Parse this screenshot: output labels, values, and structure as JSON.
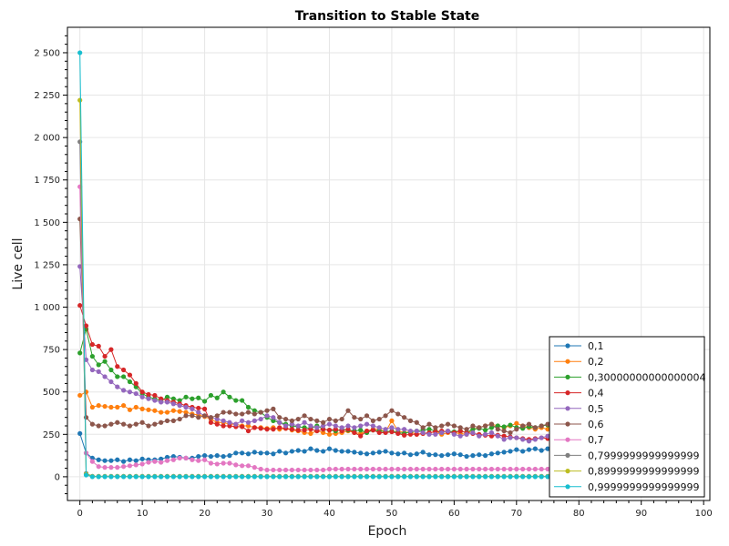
{
  "chart_data": {
    "type": "line",
    "title": "Transition to Stable State",
    "xlabel": "Epoch",
    "ylabel": "Live cell",
    "xlim": [
      -2,
      101
    ],
    "ylim": [
      -140,
      2650
    ],
    "xticks": [
      0,
      10,
      20,
      30,
      40,
      50,
      60,
      70,
      80,
      90,
      100
    ],
    "xtick_labels": [
      "0",
      "10",
      "20",
      "30",
      "40",
      "50",
      "60",
      "70",
      "80",
      "90",
      "100"
    ],
    "yticks": [
      0,
      250,
      500,
      750,
      1000,
      1250,
      1500,
      1750,
      2000,
      2250,
      2500
    ],
    "ytick_labels": [
      "0",
      "250",
      "500",
      "750",
      "1 000",
      "1 250",
      "1 500",
      "1 750",
      "2 000",
      "2 250",
      "2 500"
    ],
    "grid": true,
    "legend_position": "bottom-right",
    "series": [
      {
        "name": "0,1",
        "color": "#1f77b4",
        "values": [
          255,
          140,
          110,
          100,
          95,
          95,
          100,
          90,
          100,
          95,
          105,
          100,
          100,
          105,
          115,
          120,
          115,
          110,
          110,
          120,
          125,
          120,
          125,
          120,
          125,
          140,
          140,
          135,
          145,
          140,
          140,
          135,
          150,
          140,
          150,
          155,
          150,
          165,
          155,
          150,
          165,
          155,
          150,
          150,
          145,
          140,
          135,
          140,
          145,
          150,
          140,
          135,
          140,
          130,
          135,
          145,
          130,
          130,
          125,
          130,
          135,
          130,
          120,
          125,
          130,
          125,
          135,
          140,
          145,
          150,
          160,
          150,
          160,
          165,
          155,
          165
        ]
      },
      {
        "name": "0,2",
        "color": "#ff7f0e",
        "values": [
          480,
          500,
          410,
          420,
          415,
          410,
          410,
          420,
          395,
          410,
          400,
          395,
          390,
          380,
          380,
          390,
          385,
          380,
          370,
          365,
          355,
          340,
          320,
          320,
          310,
          310,
          300,
          300,
          290,
          290,
          285,
          290,
          280,
          285,
          275,
          270,
          260,
          255,
          270,
          260,
          250,
          255,
          260,
          270,
          260,
          255,
          270,
          280,
          280,
          265,
          330,
          270,
          260,
          265,
          250,
          255,
          255,
          270,
          250,
          260,
          260,
          255,
          250,
          280,
          290,
          300,
          310,
          300,
          290,
          300,
          315,
          300,
          290,
          280,
          290,
          280
        ]
      },
      {
        "name": "0,30000000000000004",
        "color": "#2ca02c",
        "values": [
          730,
          870,
          710,
          660,
          680,
          630,
          590,
          590,
          560,
          530,
          490,
          470,
          460,
          450,
          470,
          460,
          450,
          470,
          460,
          465,
          445,
          480,
          465,
          500,
          470,
          450,
          450,
          410,
          390,
          380,
          350,
          330,
          320,
          310,
          300,
          295,
          290,
          285,
          300,
          280,
          275,
          270,
          280,
          275,
          270,
          275,
          260,
          275,
          270,
          265,
          270,
          260,
          255,
          265,
          270,
          275,
          280,
          270,
          260,
          270,
          265,
          270,
          260,
          280,
          285,
          275,
          290,
          300,
          295,
          305,
          290,
          285,
          295,
          290,
          300,
          305
        ]
      },
      {
        "name": "0,4",
        "color": "#d62728",
        "values": [
          1010,
          890,
          780,
          770,
          710,
          750,
          650,
          630,
          600,
          550,
          500,
          485,
          480,
          460,
          450,
          440,
          430,
          420,
          410,
          405,
          400,
          320,
          310,
          300,
          300,
          295,
          295,
          270,
          290,
          285,
          280,
          280,
          290,
          285,
          280,
          275,
          275,
          280,
          270,
          280,
          275,
          280,
          270,
          280,
          260,
          240,
          270,
          275,
          260,
          260,
          265,
          255,
          245,
          250,
          250,
          255,
          260,
          265,
          270,
          265,
          260,
          270,
          260,
          255,
          250,
          245,
          240,
          245,
          240,
          235,
          230,
          225,
          220,
          225,
          230,
          225
        ]
      },
      {
        "name": "0,5",
        "color": "#9467bd",
        "values": [
          1240,
          690,
          630,
          620,
          590,
          560,
          530,
          510,
          500,
          490,
          470,
          460,
          450,
          440,
          440,
          430,
          420,
          410,
          400,
          380,
          360,
          350,
          340,
          330,
          320,
          310,
          330,
          320,
          330,
          340,
          360,
          350,
          320,
          300,
          310,
          300,
          320,
          300,
          290,
          300,
          310,
          300,
          290,
          300,
          290,
          300,
          310,
          300,
          290,
          280,
          290,
          280,
          280,
          270,
          270,
          260,
          250,
          250,
          260,
          270,
          250,
          240,
          250,
          260,
          240,
          250,
          260,
          240,
          220,
          230,
          230,
          220,
          210,
          220,
          230,
          240
        ]
      },
      {
        "name": "0,6",
        "color": "#8c564b",
        "values": [
          1520,
          350,
          310,
          300,
          300,
          310,
          320,
          310,
          300,
          310,
          320,
          300,
          310,
          320,
          330,
          330,
          340,
          360,
          360,
          350,
          360,
          350,
          360,
          380,
          380,
          370,
          370,
          380,
          370,
          380,
          390,
          400,
          350,
          340,
          330,
          340,
          360,
          340,
          330,
          320,
          340,
          330,
          340,
          390,
          350,
          340,
          360,
          330,
          340,
          360,
          390,
          370,
          350,
          330,
          320,
          290,
          310,
          290,
          300,
          310,
          300,
          290,
          280,
          300,
          290,
          300,
          310,
          280,
          270,
          260,
          280,
          300,
          310,
          290,
          300,
          310
        ]
      },
      {
        "name": "0,7",
        "color": "#e377c2",
        "values": [
          1710,
          140,
          90,
          60,
          55,
          55,
          55,
          60,
          65,
          70,
          75,
          85,
          90,
          85,
          95,
          100,
          110,
          110,
          100,
          95,
          100,
          80,
          75,
          80,
          80,
          70,
          65,
          65,
          55,
          45,
          40,
          40,
          40,
          40,
          40,
          40,
          40,
          40,
          40,
          40,
          45,
          45,
          45,
          45,
          45,
          45,
          45,
          45,
          45,
          45,
          45,
          45,
          45,
          45,
          45,
          45,
          45,
          45,
          45,
          45,
          45,
          45,
          45,
          45,
          45,
          45,
          45,
          45,
          45,
          45,
          45,
          45,
          45,
          45,
          45,
          45
        ]
      },
      {
        "name": "0,7999999999999999",
        "color": "#7f7f7f",
        "values": [
          1975,
          20,
          3,
          3,
          3,
          3,
          3,
          3,
          3,
          3,
          3,
          3,
          3,
          3,
          3,
          3,
          3,
          3,
          3,
          3,
          3,
          3,
          3,
          3,
          3,
          3,
          3,
          3,
          3,
          3,
          3,
          3,
          3,
          3,
          3,
          3,
          3,
          3,
          3,
          3,
          3,
          3,
          3,
          3,
          3,
          3,
          3,
          3,
          3,
          3,
          3,
          3,
          3,
          3,
          3,
          3,
          3,
          3,
          3,
          3,
          3,
          3,
          3,
          3,
          3,
          3,
          3,
          3,
          3,
          3,
          3,
          3,
          3,
          3,
          3,
          3
        ]
      },
      {
        "name": "0,8999999999999999",
        "color": "#bcbd22",
        "values": [
          2220,
          15,
          2,
          2,
          2,
          2,
          2,
          2,
          2,
          2,
          2,
          2,
          2,
          2,
          2,
          2,
          2,
          2,
          2,
          2,
          2,
          2,
          2,
          2,
          2,
          2,
          2,
          2,
          2,
          2,
          2,
          2,
          2,
          2,
          2,
          2,
          2,
          2,
          2,
          2,
          2,
          2,
          2,
          2,
          2,
          2,
          2,
          2,
          2,
          2,
          2,
          2,
          2,
          2,
          2,
          2,
          2,
          2,
          2,
          2,
          2,
          2,
          2,
          2,
          2,
          2,
          2,
          2,
          2,
          2,
          2,
          2,
          2,
          2,
          2,
          2
        ]
      },
      {
        "name": "0,9999999999999999",
        "color": "#17becf",
        "values": [
          2500,
          10,
          0,
          0,
          0,
          0,
          0,
          0,
          0,
          0,
          0,
          0,
          0,
          0,
          0,
          0,
          0,
          0,
          0,
          0,
          0,
          0,
          0,
          0,
          0,
          0,
          0,
          0,
          0,
          0,
          0,
          0,
          0,
          0,
          0,
          0,
          0,
          0,
          0,
          0,
          0,
          0,
          0,
          0,
          0,
          0,
          0,
          0,
          0,
          0,
          0,
          0,
          0,
          0,
          0,
          0,
          0,
          0,
          0,
          0,
          0,
          0,
          0,
          0,
          0,
          0,
          0,
          0,
          0,
          0,
          0,
          0,
          0,
          0,
          0,
          0
        ]
      }
    ]
  }
}
